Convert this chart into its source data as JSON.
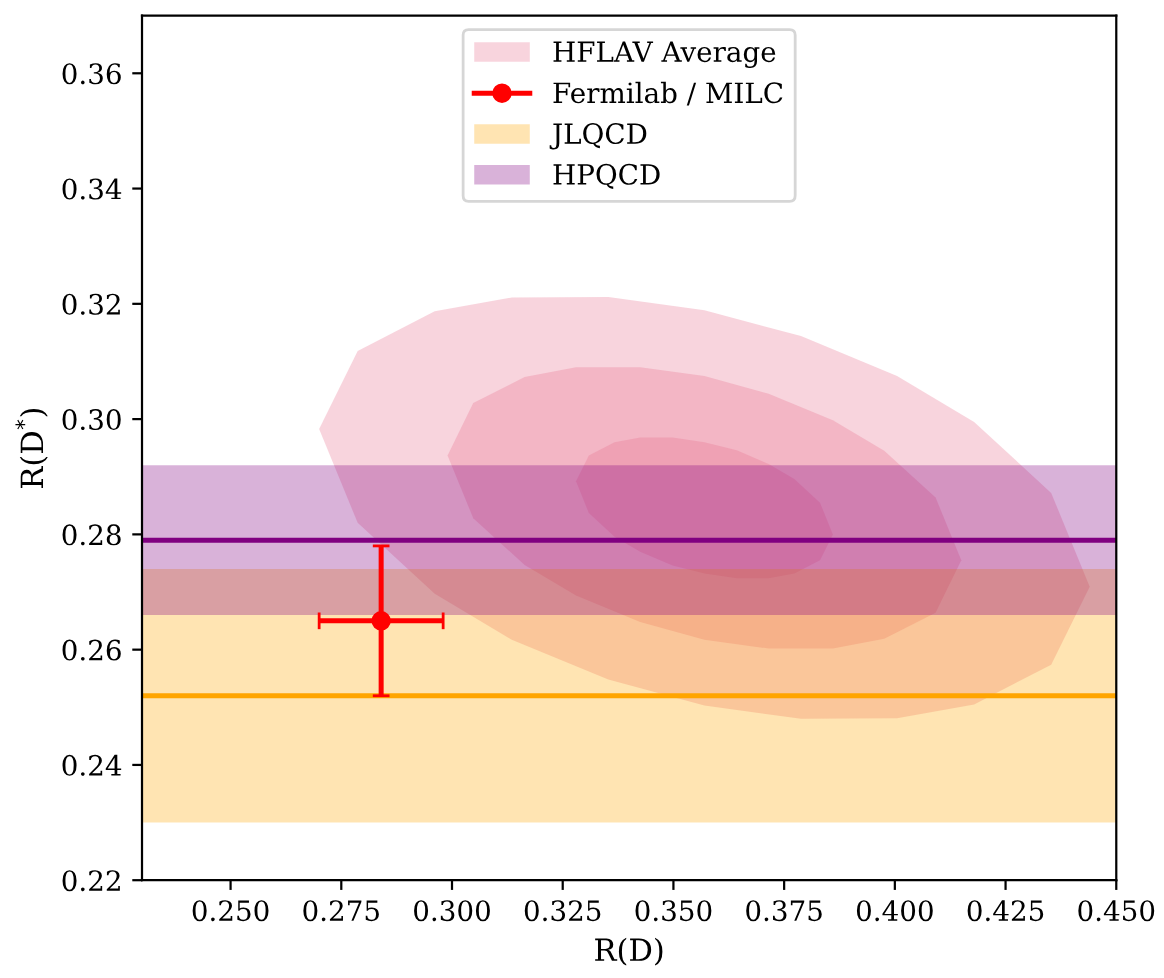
{
  "chart_data": {
    "type": "line",
    "xlabel": "R(D)",
    "ylabel": "R(D$^{*}$)",
    "xlim": [
      0.23,
      0.45
    ],
    "ylim": [
      0.22,
      0.37
    ],
    "xticks": [
      {
        "value": 0.25,
        "label": "0.250"
      },
      {
        "value": 0.275,
        "label": "0.275"
      },
      {
        "value": 0.3,
        "label": "0.300"
      },
      {
        "value": 0.325,
        "label": "0.325"
      },
      {
        "value": 0.35,
        "label": "0.350"
      },
      {
        "value": 0.375,
        "label": "0.375"
      },
      {
        "value": 0.4,
        "label": "0.400"
      },
      {
        "value": 0.425,
        "label": "0.425"
      },
      {
        "value": 0.45,
        "label": "0.450"
      }
    ],
    "yticks": [
      {
        "value": 0.22,
        "label": "0.22"
      },
      {
        "value": 0.24,
        "label": "0.24"
      },
      {
        "value": 0.26,
        "label": "0.26"
      },
      {
        "value": 0.28,
        "label": "0.28"
      },
      {
        "value": 0.3,
        "label": "0.30"
      },
      {
        "value": 0.32,
        "label": "0.32"
      },
      {
        "value": 0.34,
        "label": "0.34"
      },
      {
        "value": 0.36,
        "label": "0.36"
      }
    ],
    "grid": false,
    "legend": "top",
    "series": [
      {
        "name": "HFLAV Average",
        "type": "area",
        "color": "#e8708f",
        "x": [
          0.27,
          0.2787,
          0.2961,
          0.3135,
          0.3353,
          0.357,
          0.3788,
          0.4005,
          0.4179,
          0.4353,
          0.444,
          0.4353,
          0.4179,
          0.4005,
          0.3788,
          0.357,
          0.3353,
          0.3135,
          0.2961,
          0.2787
        ],
        "values": [
          0.2983,
          0.3118,
          0.3187,
          0.3211,
          0.3212,
          0.3189,
          0.3144,
          0.3075,
          0.2995,
          0.2872,
          0.2709,
          0.2574,
          0.2505,
          0.2481,
          0.248,
          0.2503,
          0.2548,
          0.2617,
          0.2697,
          0.282
        ]
      },
      {
        "type": "area",
        "color": "#e8708f",
        "x": [
          0.299,
          0.3048,
          0.3164,
          0.328,
          0.3425,
          0.357,
          0.3715,
          0.386,
          0.3976,
          0.4092,
          0.415,
          0.4092,
          0.3976,
          0.386,
          0.3715,
          0.357,
          0.3425,
          0.328,
          0.3164,
          0.3048
        ],
        "values": [
          0.2937,
          0.3028,
          0.3073,
          0.309,
          0.309,
          0.3075,
          0.3044,
          0.2998,
          0.2945,
          0.2864,
          0.2755,
          0.2664,
          0.2619,
          0.2602,
          0.2602,
          0.2617,
          0.2648,
          0.2694,
          0.2747,
          0.2828
        ]
      },
      {
        "type": "area",
        "color": "#e8708f",
        "x": [
          0.328,
          0.3309,
          0.3367,
          0.3425,
          0.3498,
          0.357,
          0.3643,
          0.3715,
          0.3773,
          0.3831,
          0.386,
          0.3831,
          0.3773,
          0.3715,
          0.3643,
          0.357,
          0.3498,
          0.3425,
          0.3367,
          0.3309
        ],
        "values": [
          0.2892,
          0.2937,
          0.296,
          0.2968,
          0.2968,
          0.296,
          0.2946,
          0.2922,
          0.2896,
          0.2855,
          0.28,
          0.2755,
          0.2732,
          0.2724,
          0.2724,
          0.2732,
          0.2746,
          0.277,
          0.2796,
          0.2837
        ]
      },
      {
        "name": "Fermilab / MILC",
        "type": "scatter",
        "color": "#ff0000",
        "marker": "circle",
        "x": [
          0.284
        ],
        "values": [
          0.265
        ],
        "errors": [
          0.013
        ],
        "xerrors": [
          0.014
        ]
      },
      {
        "name": "JLQCD",
        "type": "line",
        "color": "#ffa500",
        "x": [
          0.23,
          0.45
        ],
        "values": [
          0.252,
          0.252
        ],
        "lower": [
          0.23,
          0.23
        ],
        "upper": [
          0.274,
          0.274
        ]
      },
      {
        "name": "HPQCD",
        "type": "line",
        "color": "#800080",
        "x": [
          0.23,
          0.45
        ],
        "values": [
          0.279,
          0.279
        ],
        "lower": [
          0.266,
          0.266
        ],
        "upper": [
          0.292,
          0.292
        ]
      }
    ]
  }
}
